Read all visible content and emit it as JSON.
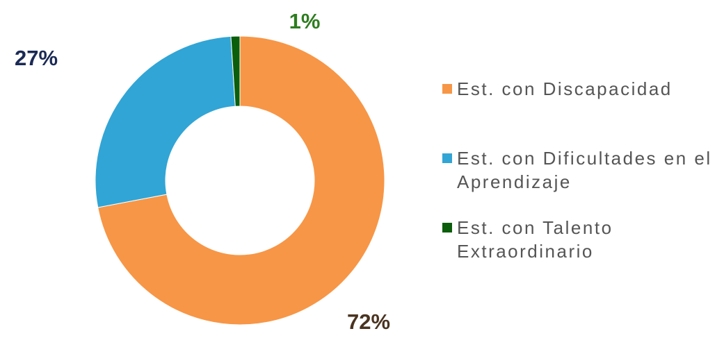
{
  "chart_data": {
    "type": "donut",
    "categories": [
      "Est. con Discapacidad",
      "Est. con Dificultades en el Aprendizaje",
      "Est. con Talento Extraordinario"
    ],
    "values": [
      72,
      27,
      1
    ],
    "value_labels": [
      "72%",
      "27%",
      "1%"
    ],
    "colors": [
      "#f79646",
      "#31a5d5",
      "#0b5e0b"
    ],
    "label_colors": [
      "#4a3420",
      "#1b2a55",
      "#2e7d1f"
    ],
    "legend": "right"
  }
}
